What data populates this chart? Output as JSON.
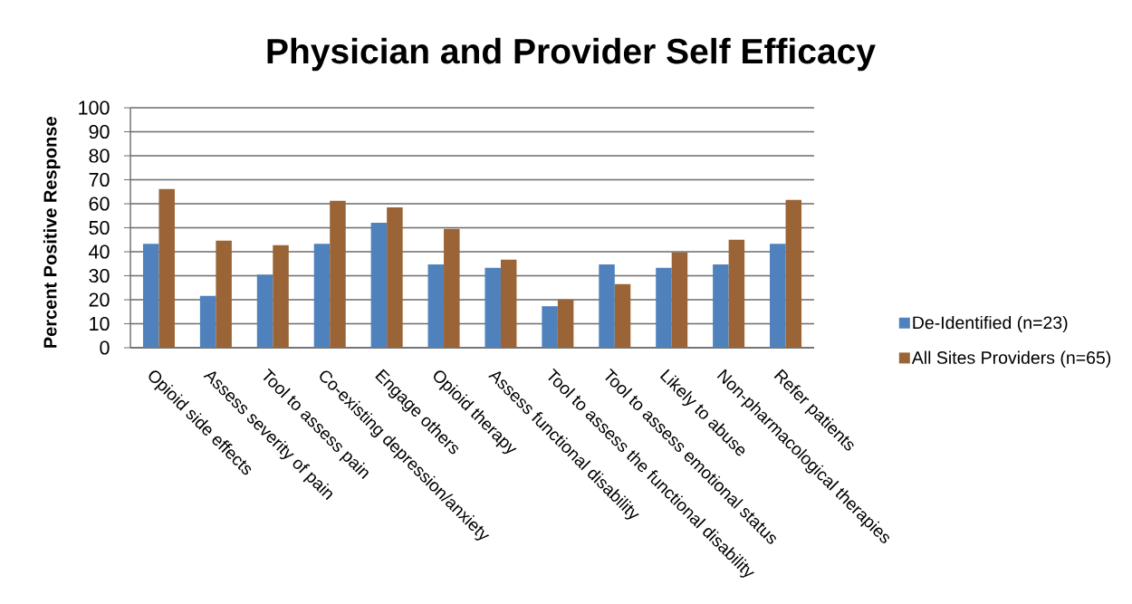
{
  "chart_data": {
    "type": "bar",
    "title": "Physician and Provider Self Efficacy",
    "ylabel": "Percent Positive Response",
    "categories": [
      "Opioid side effects",
      "Assess severity of pain",
      "Tool to assess pain",
      "Co-existing depression/anxiety",
      "Engage others",
      "Opioid therapy",
      "Assess functional disability",
      "Tool to assess the functional disability",
      "Tool to assess emotional status",
      "Likely to abuse",
      "Non-pharmacological therapies",
      "Refer patients"
    ],
    "series": [
      {
        "name": "De-Identified (n=23)",
        "color": "#4f81bd",
        "values": [
          43.3,
          21.6,
          30.5,
          43.3,
          52.1,
          34.7,
          33.3,
          17.3,
          34.7,
          33.3,
          34.7,
          43.3
        ]
      },
      {
        "name": "All Sites Providers (n=65)",
        "color": "#9a6437",
        "values": [
          66.1,
          44.6,
          42.7,
          61.2,
          58.5,
          49.5,
          36.7,
          20.1,
          26.5,
          39.7,
          45.0,
          61.6
        ]
      }
    ],
    "ylim": [
      0,
      100
    ],
    "yticks": [
      0,
      10,
      20,
      30,
      40,
      50,
      60,
      70,
      80,
      90,
      100
    ],
    "grid": "y",
    "legend": "right"
  }
}
